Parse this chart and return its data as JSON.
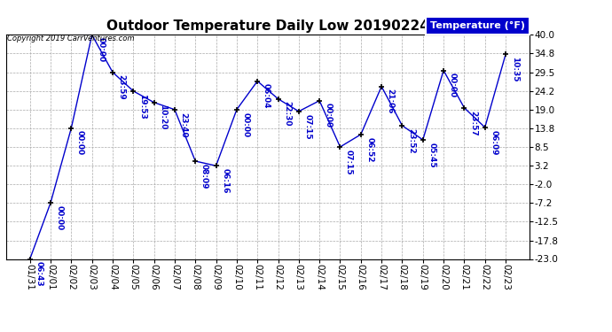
{
  "title": "Outdoor Temperature Daily Low 20190224",
  "copyright_text": "Copyright 2019 CarrVentures.com",
  "legend_label": "Temperature (°F)",
  "dates": [
    "01/31",
    "02/01",
    "02/02",
    "02/03",
    "02/04",
    "02/05",
    "02/06",
    "02/07",
    "02/08",
    "02/09",
    "02/10",
    "02/11",
    "02/12",
    "02/13",
    "02/14",
    "02/15",
    "02/16",
    "02/17",
    "02/18",
    "02/19",
    "02/20",
    "02/21",
    "02/22",
    "02/23"
  ],
  "values": [
    -23.0,
    -7.2,
    13.8,
    40.0,
    29.5,
    24.2,
    21.0,
    19.0,
    4.5,
    3.2,
    19.0,
    27.0,
    22.0,
    18.5,
    21.5,
    8.5,
    12.0,
    25.5,
    14.5,
    10.5,
    30.0,
    19.5,
    14.0,
    34.5
  ],
  "annotations": [
    "06:43",
    "00:00",
    "00:00",
    "00:00",
    "23:59",
    "19:53",
    "10:20",
    "23:40",
    "08:09",
    "06:16",
    "00:00",
    "06:04",
    "22:30",
    "07:15",
    "00:00",
    "07:15",
    "06:52",
    "21:06",
    "23:52",
    "05:45",
    "00:00",
    "23:57",
    "06:09",
    "10:35"
  ],
  "ylim": [
    -23.0,
    40.0
  ],
  "yticks": [
    -23.0,
    -17.8,
    -12.5,
    -7.2,
    -2.0,
    3.2,
    8.5,
    13.8,
    19.0,
    24.2,
    29.5,
    34.8,
    40.0
  ],
  "line_color": "#0000cc",
  "marker_color": "#000000",
  "background_color": "#ffffff",
  "grid_color": "#aaaaaa",
  "title_fontsize": 11,
  "annotation_fontsize": 6.5,
  "tick_fontsize": 7.5,
  "legend_bg": "#0000cc",
  "legend_text_color": "#ffffff",
  "copyright_fontsize": 6,
  "legend_fontsize": 8
}
